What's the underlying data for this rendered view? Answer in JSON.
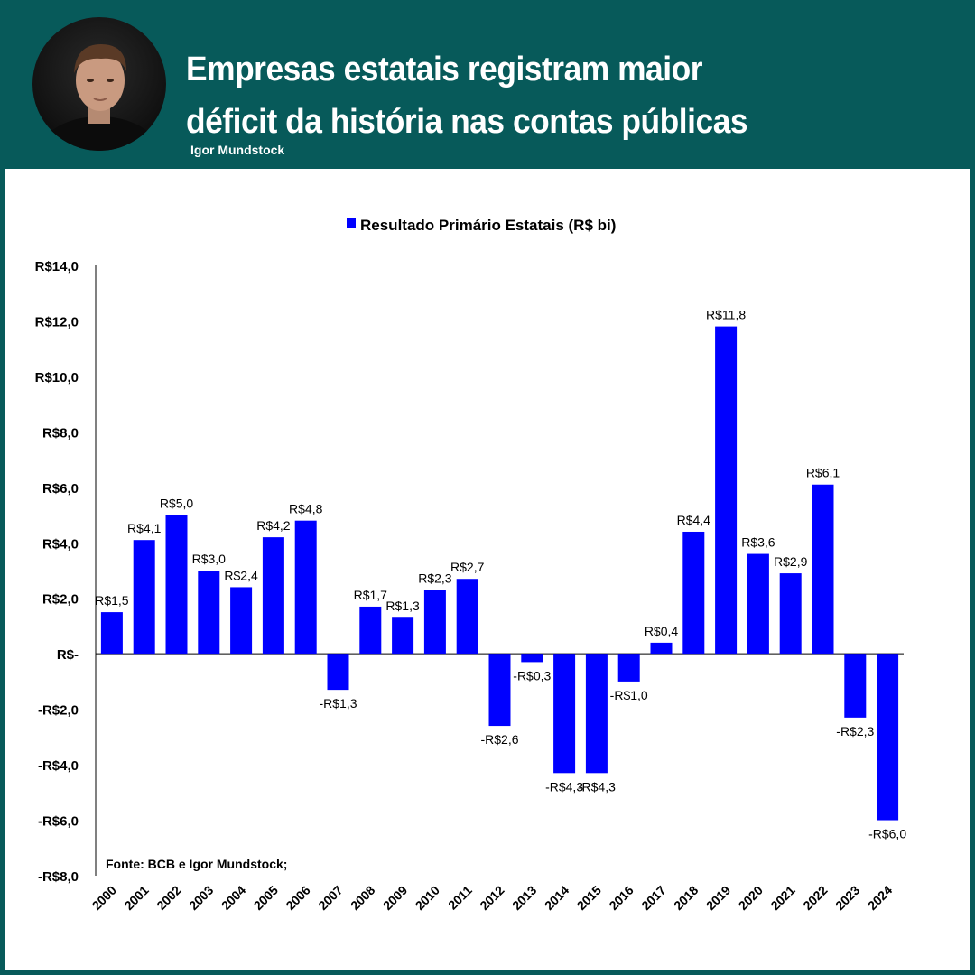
{
  "header": {
    "title_line1": "Empresas estatais registram maior",
    "title_line2": "déficit da história nas contas públicas",
    "author": "Igor Mundstock",
    "avatar_icon": "person-portrait-icon"
  },
  "colors": {
    "background": "#075a5a",
    "panel": "#ffffff",
    "bar": "#0000ff",
    "text": "#000000"
  },
  "chart_data": {
    "type": "bar",
    "legend": "Resultado Primário Estatais (R$ bi)",
    "legend_position": "top-center",
    "source": "Fonte: BCB e Igor Mundstock;",
    "ylim": [
      -8,
      14
    ],
    "yticks": [
      14,
      12,
      10,
      8,
      6,
      4,
      2,
      0,
      -2,
      -4,
      -6,
      -8
    ],
    "ytick_labels": [
      "R$14,0",
      "R$12,0",
      "R$10,0",
      "R$8,0",
      "R$6,0",
      "R$4,0",
      "R$2,0",
      "R$-",
      "-R$2,0",
      "-R$4,0",
      "-R$6,0",
      "-R$8,0"
    ],
    "grid": false,
    "categories": [
      "2000",
      "2001",
      "2002",
      "2003",
      "2004",
      "2005",
      "2006",
      "2007",
      "2008",
      "2009",
      "2010",
      "2011",
      "2012",
      "2013",
      "2014",
      "2015",
      "2016",
      "2017",
      "2018",
      "2019",
      "2020",
      "2021",
      "2022",
      "2023",
      "2024"
    ],
    "series": [
      {
        "name": "Resultado Primário Estatais (R$ bi)",
        "values": [
          1.5,
          4.1,
          5.0,
          3.0,
          2.4,
          4.2,
          4.8,
          -1.3,
          1.7,
          1.3,
          2.3,
          2.7,
          -2.6,
          -0.3,
          -4.3,
          -4.3,
          -1.0,
          0.4,
          4.4,
          11.8,
          3.6,
          2.9,
          6.1,
          -2.3,
          -6.0
        ],
        "labels": [
          "R$1,5",
          "R$4,1",
          "R$5,0",
          "R$3,0",
          "R$2,4",
          "R$4,2",
          "R$4,8",
          "-R$1,3",
          "R$1,7",
          "R$1,3",
          "R$2,3",
          "R$2,7",
          "-R$2,6",
          "-R$0,3",
          "-R$4,3",
          "-R$4,3",
          "-R$1,0",
          "R$0,4",
          "R$4,4",
          "R$11,8",
          "R$3,6",
          "R$2,9",
          "R$6,1",
          "-R$2,3",
          "-R$6,0"
        ]
      }
    ]
  }
}
